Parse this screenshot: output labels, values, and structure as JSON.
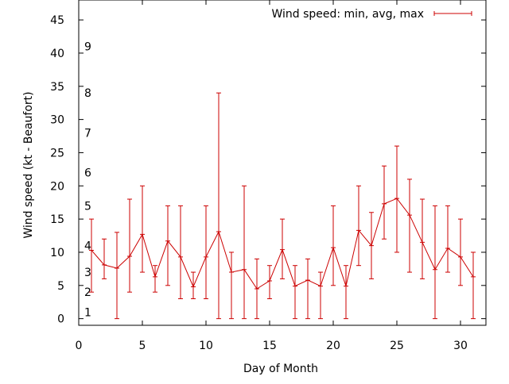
{
  "chart_data": {
    "type": "line",
    "title": "",
    "xlabel": "Day of Month",
    "ylabel": "Wind speed (kt - Beaufort)",
    "xlim": [
      0,
      32
    ],
    "ylim": [
      -1,
      48
    ],
    "xticks": [
      "0",
      "5",
      "10",
      "15",
      "20",
      "25",
      "30"
    ],
    "yticks": [
      "0",
      "5",
      "10",
      "15",
      "20",
      "25",
      "30",
      "35",
      "40",
      "45"
    ],
    "grid": false,
    "legend_position": "top-right",
    "series": [
      {
        "name": "Wind speed: min, avg, max",
        "color": "#cc0000",
        "x": [
          1,
          2,
          3,
          4,
          5,
          6,
          7,
          8,
          9,
          10,
          11,
          12,
          13,
          14,
          15,
          16,
          17,
          18,
          19,
          20,
          21,
          22,
          23,
          24,
          25,
          26,
          27,
          28,
          29,
          30,
          31
        ],
        "avg": [
          10.3,
          8.1,
          7.6,
          9.4,
          12.7,
          6.3,
          11.7,
          9.3,
          4.8,
          9.3,
          13.1,
          7.0,
          7.4,
          4.5,
          5.7,
          10.4,
          4.9,
          5.8,
          4.9,
          10.7,
          4.9,
          13.3,
          11.0,
          17.3,
          18.1,
          15.6,
          11.5,
          7.4,
          10.6,
          9.3,
          6.3
        ],
        "min": [
          4,
          6,
          0,
          4,
          7,
          4,
          5,
          3,
          3,
          3,
          0,
          0,
          0,
          0,
          3,
          6,
          0,
          0,
          0,
          5,
          0,
          8,
          6,
          12,
          10,
          7,
          6,
          0,
          7,
          5,
          0
        ],
        "max": [
          15,
          12,
          13,
          18,
          20,
          8,
          17,
          17,
          7,
          17,
          34,
          10,
          20,
          9,
          8,
          15,
          8,
          9,
          7,
          17,
          8,
          20,
          16,
          23,
          26,
          21,
          18,
          17,
          17,
          15,
          10
        ]
      }
    ],
    "annotations": [
      {
        "text": "1",
        "y": 1
      },
      {
        "text": "2",
        "y": 4
      },
      {
        "text": "3",
        "y": 7
      },
      {
        "text": "4",
        "y": 11
      },
      {
        "text": "5",
        "y": 17
      },
      {
        "text": "6",
        "y": 22
      },
      {
        "text": "7",
        "y": 28
      },
      {
        "text": "8",
        "y": 34
      },
      {
        "text": "9",
        "y": 41
      }
    ]
  }
}
